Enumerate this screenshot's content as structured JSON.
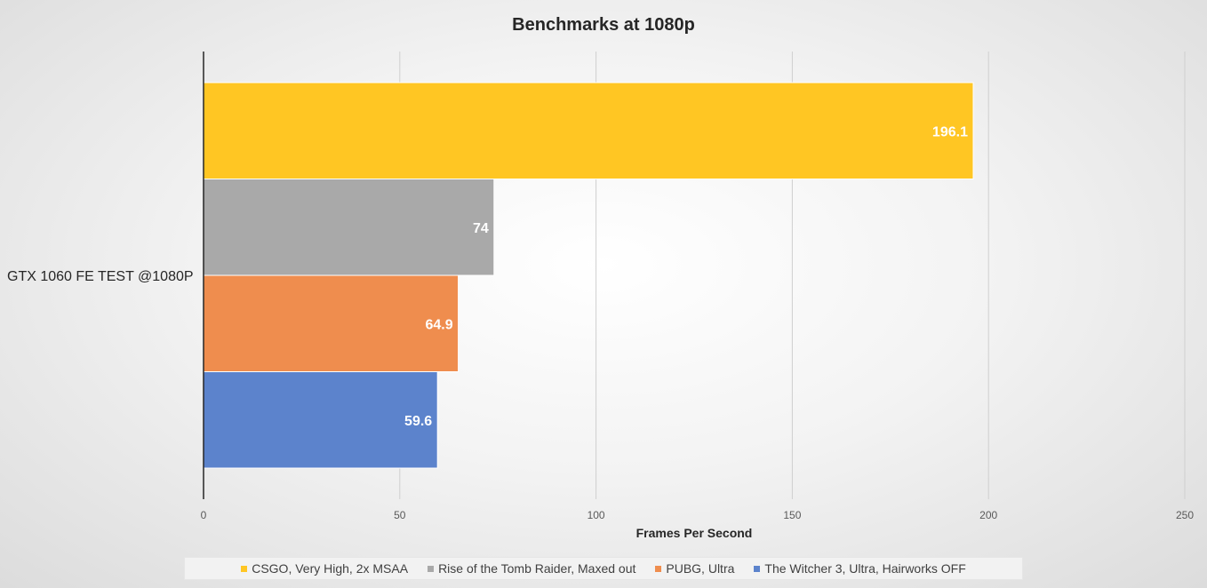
{
  "chart_data": {
    "type": "bar",
    "orientation": "horizontal",
    "title": "Benchmarks at 1080p",
    "xlabel": "Frames Per Second",
    "ylabel": "",
    "categories": [
      "GTX 1060 FE TEST @1080P"
    ],
    "xlim": [
      0,
      250
    ],
    "x_ticks": [
      "0",
      "50",
      "100",
      "150",
      "200",
      "250"
    ],
    "grid": true,
    "legend_position": "bottom",
    "series": [
      {
        "name": "CSGO, Very High, 2x MSAA",
        "values": [
          196.1
        ],
        "label": "196.1",
        "color": "#FFC623"
      },
      {
        "name": "Rise of the Tomb Raider, Maxed out",
        "values": [
          74
        ],
        "label": "74",
        "color": "#A9A9A9"
      },
      {
        "name": "PUBG, Ultra",
        "values": [
          64.9
        ],
        "label": "64.9",
        "color": "#EF8D4E"
      },
      {
        "name": "The Witcher 3, Ultra, Hairworks OFF",
        "values": [
          59.6
        ],
        "label": "59.6",
        "color": "#5C83CC"
      }
    ]
  }
}
